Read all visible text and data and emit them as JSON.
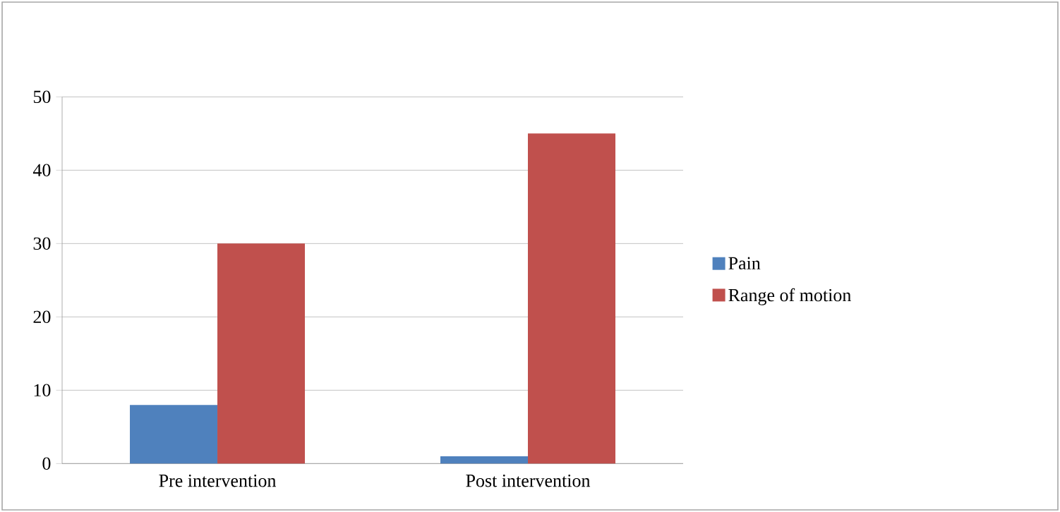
{
  "chart_data": {
    "type": "bar",
    "categories": [
      "Pre intervention",
      "Post intervention"
    ],
    "series": [
      {
        "name": "Pain",
        "color": "#4f81bd",
        "values": [
          8,
          1
        ]
      },
      {
        "name": "Range of motion",
        "color": "#c0504d",
        "values": [
          30,
          45
        ]
      }
    ],
    "ylim": [
      0,
      50
    ],
    "yticks": [
      0,
      10,
      20,
      30,
      40,
      50
    ],
    "grid": "y",
    "legend": "right"
  }
}
